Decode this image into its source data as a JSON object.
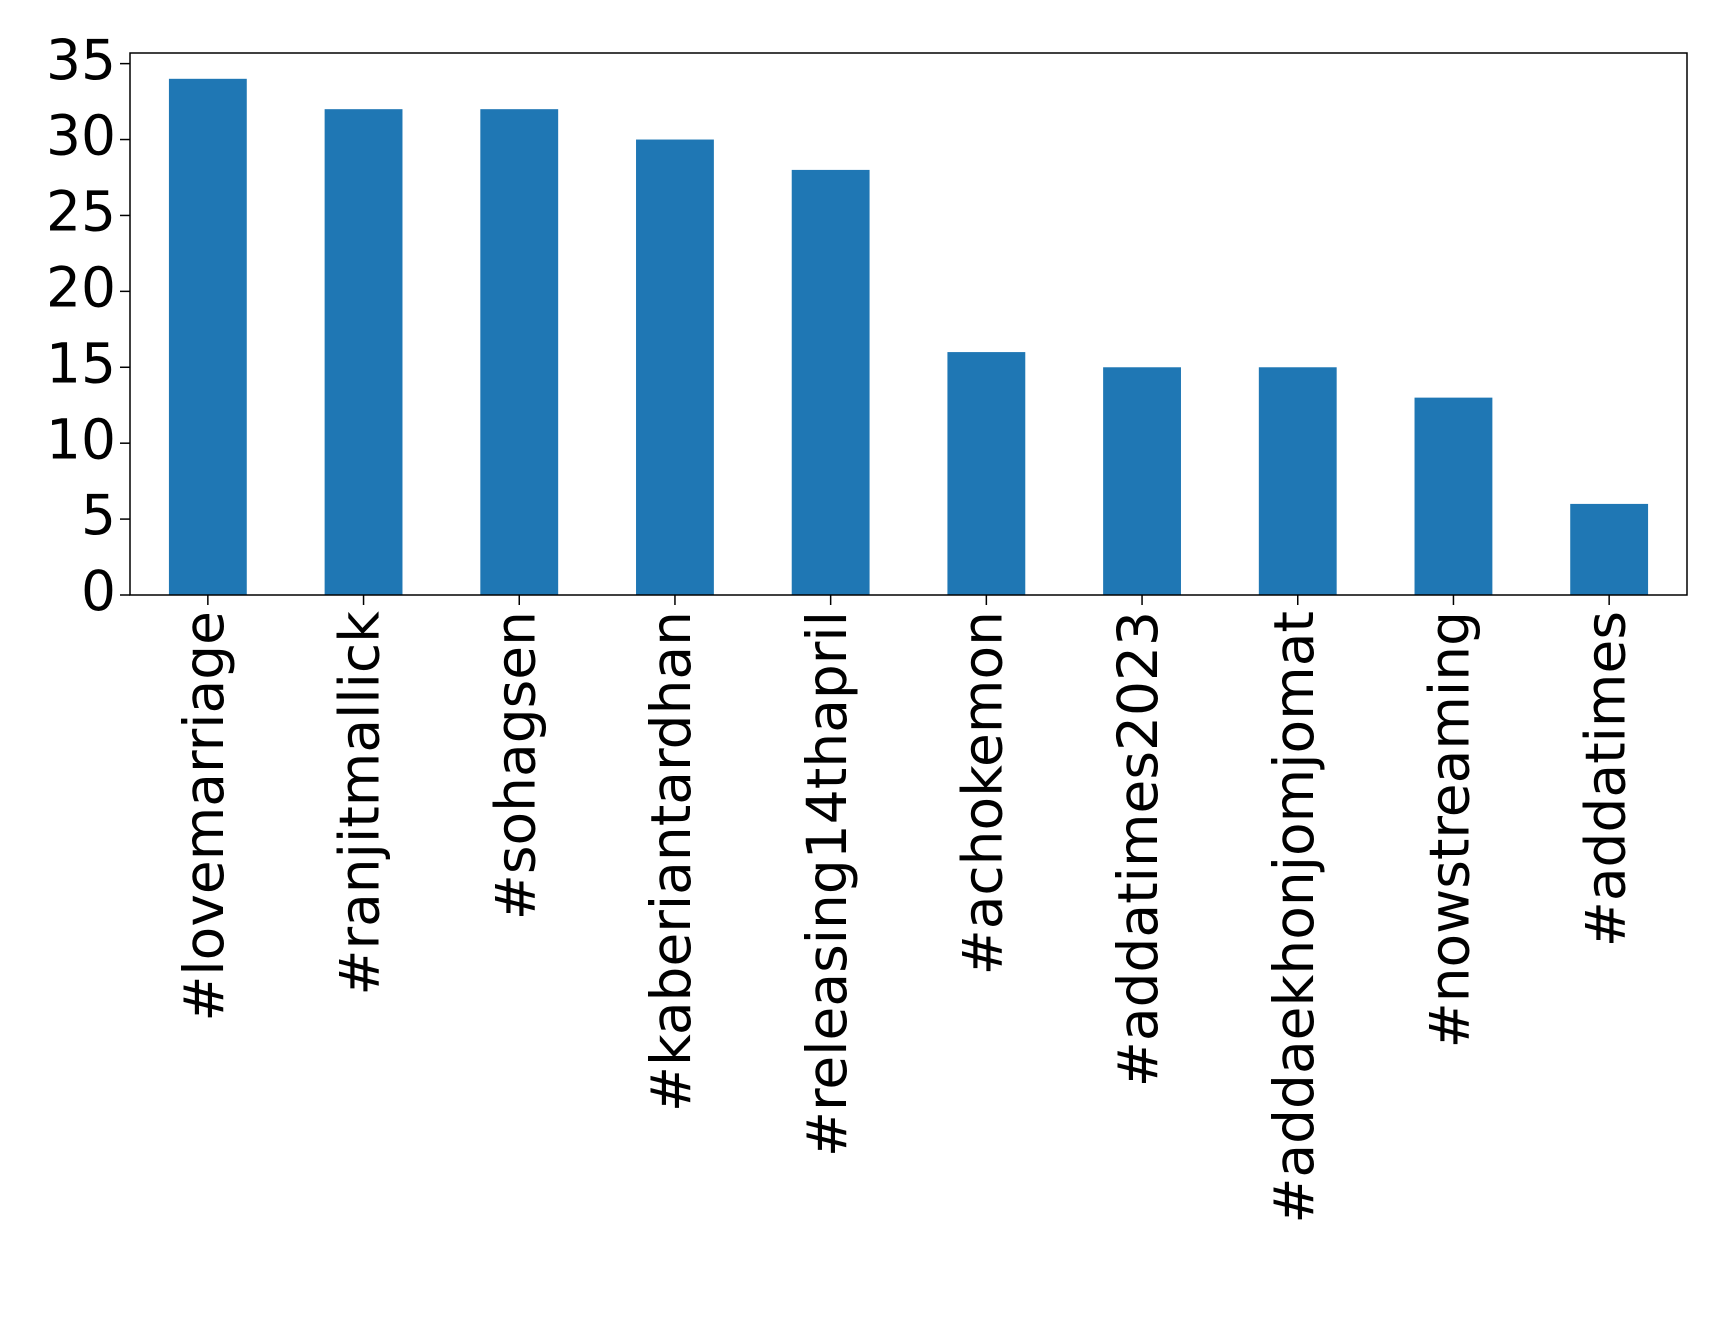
{
  "chart_data": {
    "type": "bar",
    "categories": [
      "#lovemarriage",
      "#ranjitmallick",
      "#sohagsen",
      "#kaberiantardhan",
      "#releasing14thapril",
      "#achokemon",
      "#addatimes2023",
      "#addaekhonjomjomat",
      "#nowstreaming",
      "#addatimes"
    ],
    "values": [
      34,
      32,
      32,
      30,
      28,
      16,
      15,
      15,
      13,
      6
    ],
    "color": "#1f77b4",
    "ylim": [
      0,
      35.7
    ],
    "yticks": [
      0,
      5,
      10,
      15,
      20,
      25,
      30,
      35
    ],
    "grid": false
  }
}
